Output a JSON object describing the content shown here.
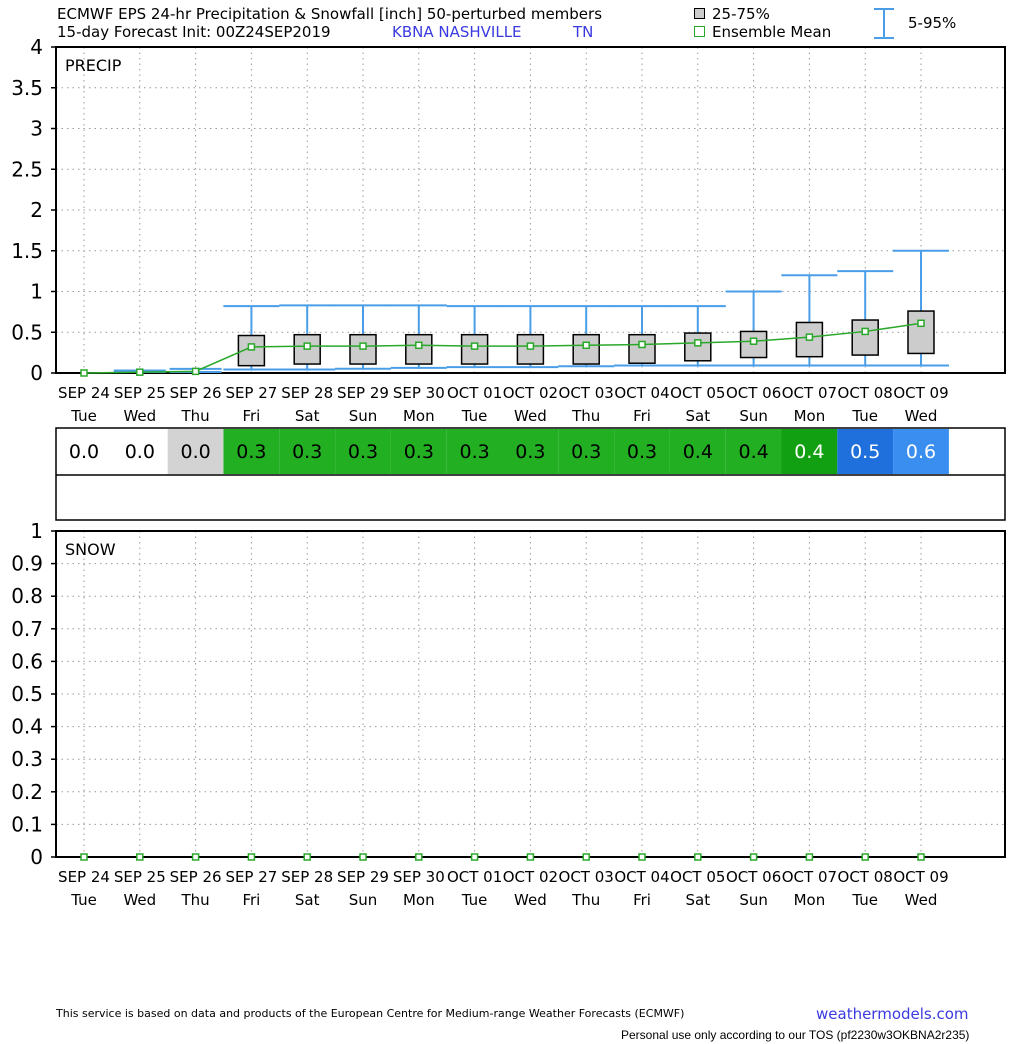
{
  "header": {
    "title_line1": "ECMWF EPS 24-hr Precipitation & Snowfall [inch]  50-perturbed members",
    "title_line2": "15-day Forecast Init: 00Z24SEP2019",
    "station": "KBNA  NASHVILLE",
    "state": "TN",
    "legend_iqr": "25-75%",
    "legend_mean": "Ensemble Mean",
    "legend_range": "5-95%"
  },
  "colors": {
    "whisker": "#4a9ee8",
    "mean_line": "#2aa82a",
    "box_fill": "#cccccc",
    "cell_grey": "#d3d3d3",
    "cell_green": "#22b022",
    "cell_dark_green": "#11a011",
    "cell_blue": "#1f6fdc",
    "cell_light_blue": "#3a8ef0"
  },
  "chart_data": [
    {
      "type": "box",
      "panel_label": "PRECIP",
      "ylim": [
        0,
        4
      ],
      "yticks": [
        "4",
        "3.5",
        "3",
        "2.5",
        "2",
        "1.5",
        "1",
        "0.5",
        "0"
      ],
      "ytick_values": [
        4,
        3.5,
        3,
        2.5,
        2,
        1.5,
        1,
        0.5,
        0
      ],
      "grid": true,
      "categories": [
        "SEP 24",
        "SEP 25",
        "SEP 26",
        "SEP 27",
        "SEP 28",
        "SEP 29",
        "SEP 30",
        "OCT 01",
        "OCT 02",
        "OCT 03",
        "OCT 04",
        "OCT 05",
        "OCT 06",
        "OCT 07",
        "OCT 08",
        "OCT 09"
      ],
      "days": [
        "Tue",
        "Wed",
        "Thu",
        "Fri",
        "Sat",
        "Sun",
        "Mon",
        "Tue",
        "Wed",
        "Thu",
        "Fri",
        "Sat",
        "Sun",
        "Mon",
        "Tue",
        "Wed"
      ],
      "mean": [
        0.0,
        0.01,
        0.02,
        0.32,
        0.33,
        0.33,
        0.34,
        0.33,
        0.33,
        0.34,
        0.35,
        0.37,
        0.39,
        0.44,
        0.51,
        0.61
      ],
      "p25": [
        null,
        null,
        null,
        0.09,
        0.11,
        0.11,
        0.11,
        0.11,
        0.11,
        0.11,
        0.12,
        0.15,
        0.19,
        0.2,
        0.22,
        0.24
      ],
      "p75": [
        null,
        null,
        null,
        0.46,
        0.47,
        0.47,
        0.47,
        0.47,
        0.47,
        0.47,
        0.47,
        0.49,
        0.51,
        0.62,
        0.65,
        0.76
      ],
      "p5": [
        0.0,
        0.0,
        0.0,
        0.03,
        0.03,
        0.04,
        0.05,
        0.06,
        0.06,
        0.07,
        0.08,
        0.08,
        0.08,
        0.08,
        0.08,
        0.08
      ],
      "p95": [
        0.0,
        0.03,
        0.05,
        0.82,
        0.83,
        0.83,
        0.83,
        0.82,
        0.82,
        0.82,
        0.82,
        0.82,
        1.0,
        1.2,
        1.25,
        1.5
      ]
    },
    {
      "type": "box",
      "panel_label": "SNOW",
      "ylim": [
        0,
        1
      ],
      "yticks": [
        "1",
        "0.9",
        "0.8",
        "0.7",
        "0.6",
        "0.5",
        "0.4",
        "0.3",
        "0.2",
        "0.1",
        "0"
      ],
      "ytick_values": [
        1,
        0.9,
        0.8,
        0.7,
        0.6,
        0.5,
        0.4,
        0.3,
        0.2,
        0.1,
        0
      ],
      "grid": true,
      "categories": [
        "SEP 24",
        "SEP 25",
        "SEP 26",
        "SEP 27",
        "SEP 28",
        "SEP 29",
        "SEP 30",
        "OCT 01",
        "OCT 02",
        "OCT 03",
        "OCT 04",
        "OCT 05",
        "OCT 06",
        "OCT 07",
        "OCT 08",
        "OCT 09"
      ],
      "days": [
        "Tue",
        "Wed",
        "Thu",
        "Fri",
        "Sat",
        "Sun",
        "Mon",
        "Tue",
        "Wed",
        "Thu",
        "Fri",
        "Sat",
        "Sun",
        "Mon",
        "Tue",
        "Wed"
      ],
      "mean": [
        0,
        0,
        0,
        0,
        0,
        0,
        0,
        0,
        0,
        0,
        0,
        0,
        0,
        0,
        0,
        0
      ]
    }
  ],
  "precip_table": {
    "values": [
      "0.0",
      "0.0",
      "0.0",
      "0.3",
      "0.3",
      "0.3",
      "0.3",
      "0.3",
      "0.3",
      "0.3",
      "0.3",
      "0.4",
      "0.4",
      "0.4",
      "0.5",
      "0.6"
    ],
    "cell_colors": [
      "#ffffff",
      "#ffffff",
      "#d3d3d3",
      "#22b022",
      "#22b022",
      "#22b022",
      "#22b022",
      "#22b022",
      "#22b022",
      "#22b022",
      "#22b022",
      "#22b022",
      "#22b022",
      "#11a011",
      "#1f6fdc",
      "#3a8ef0"
    ],
    "text_colors": [
      "#000000",
      "#000000",
      "#000000",
      "#000000",
      "#000000",
      "#000000",
      "#000000",
      "#000000",
      "#000000",
      "#000000",
      "#000000",
      "#000000",
      "#000000",
      "#ffffff",
      "#ffffff",
      "#ffffff"
    ]
  },
  "footer": {
    "disclaimer": "This service is based on data and products of the European Centre for Medium-range Weather Forecasts (ECMWF)",
    "site": "weathermodels.com",
    "tos": "Personal use only according to our TOS (pf2230w3OKBNA2r235)"
  }
}
